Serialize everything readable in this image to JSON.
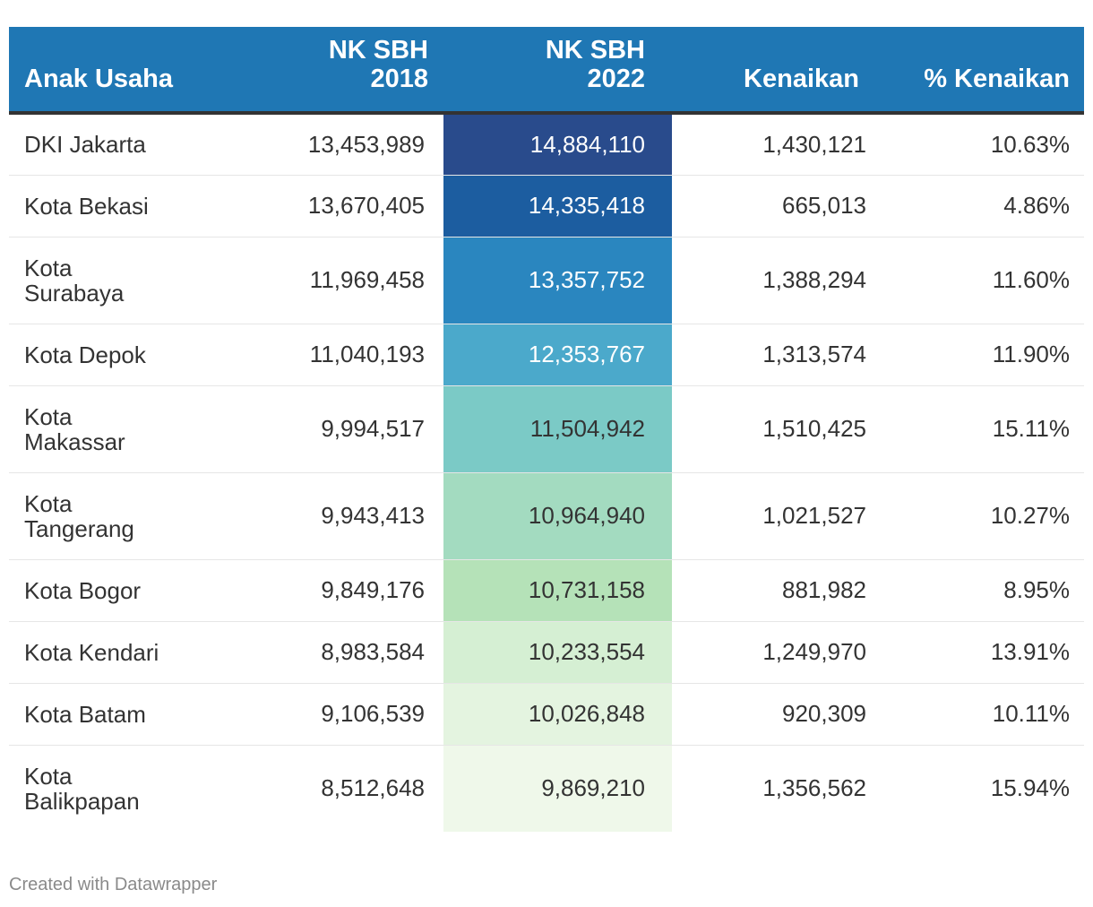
{
  "chart_data": {
    "type": "table",
    "columns": [
      {
        "lines": [
          "Anak Usaha"
        ]
      },
      {
        "lines": [
          "NK SBH",
          "2018"
        ]
      },
      {
        "lines": [
          "NK SBH",
          "2022"
        ]
      },
      {
        "lines": [
          "Kenaikan"
        ]
      },
      {
        "lines": [
          "% Kenaikan"
        ]
      }
    ],
    "rows": [
      {
        "name": "DKI Jakarta",
        "name_lines": [
          "DKI Jakarta"
        ],
        "nk2018": "13,453,989",
        "nk2022": "14,884,110",
        "kenaikan": "1,430,121",
        "pct": "10.63%",
        "bg": "#294b8c",
        "fg": "#ffffff"
      },
      {
        "name": "Kota Bekasi",
        "name_lines": [
          "Kota Bekasi"
        ],
        "nk2018": "13,670,405",
        "nk2022": "14,335,418",
        "kenaikan": "665,013",
        "pct": "4.86%",
        "bg": "#1c5da0",
        "fg": "#ffffff"
      },
      {
        "name": "Kota Surabaya",
        "name_lines": [
          "Kota",
          "Surabaya"
        ],
        "nk2018": "11,969,458",
        "nk2022": "13,357,752",
        "kenaikan": "1,388,294",
        "pct": "11.60%",
        "bg": "#2a86bf",
        "fg": "#ffffff"
      },
      {
        "name": "Kota Depok",
        "name_lines": [
          "Kota Depok"
        ],
        "nk2018": "11,040,193",
        "nk2022": "12,353,767",
        "kenaikan": "1,313,574",
        "pct": "11.90%",
        "bg": "#4ba9cb",
        "fg": "#ffffff"
      },
      {
        "name": "Kota Makassar",
        "name_lines": [
          "Kota",
          "Makassar"
        ],
        "nk2018": "9,994,517",
        "nk2022": "11,504,942",
        "kenaikan": "1,510,425",
        "pct": "15.11%",
        "bg": "#7bcac6",
        "fg": "#333333"
      },
      {
        "name": "Kota Tangerang",
        "name_lines": [
          "Kota",
          "Tangerang"
        ],
        "nk2018": "9,943,413",
        "nk2022": "10,964,940",
        "kenaikan": "1,021,527",
        "pct": "10.27%",
        "bg": "#a3dbc0",
        "fg": "#333333"
      },
      {
        "name": "Kota Bogor",
        "name_lines": [
          "Kota Bogor"
        ],
        "nk2018": "9,849,176",
        "nk2022": "10,731,158",
        "kenaikan": "881,982",
        "pct": "8.95%",
        "bg": "#b5e2b8",
        "fg": "#333333"
      },
      {
        "name": "Kota Kendari",
        "name_lines": [
          "Kota Kendari"
        ],
        "nk2018": "8,983,584",
        "nk2022": "10,233,554",
        "kenaikan": "1,249,970",
        "pct": "13.91%",
        "bg": "#d5efd3",
        "fg": "#333333"
      },
      {
        "name": "Kota Batam",
        "name_lines": [
          "Kota Batam"
        ],
        "nk2018": "9,106,539",
        "nk2022": "10,026,848",
        "kenaikan": "920,309",
        "pct": "10.11%",
        "bg": "#e4f4e0",
        "fg": "#333333"
      },
      {
        "name": "Kota Balikpapan",
        "name_lines": [
          "Kota",
          "Balikpapan"
        ],
        "nk2018": "8,512,648",
        "nk2022": "9,869,210",
        "kenaikan": "1,356,562",
        "pct": "15.94%",
        "bg": "#eff8ea",
        "fg": "#333333"
      }
    ],
    "header_bg": "#1f77b4",
    "header_fg": "#ffffff"
  },
  "footer": {
    "credit": "Created with Datawrapper"
  }
}
